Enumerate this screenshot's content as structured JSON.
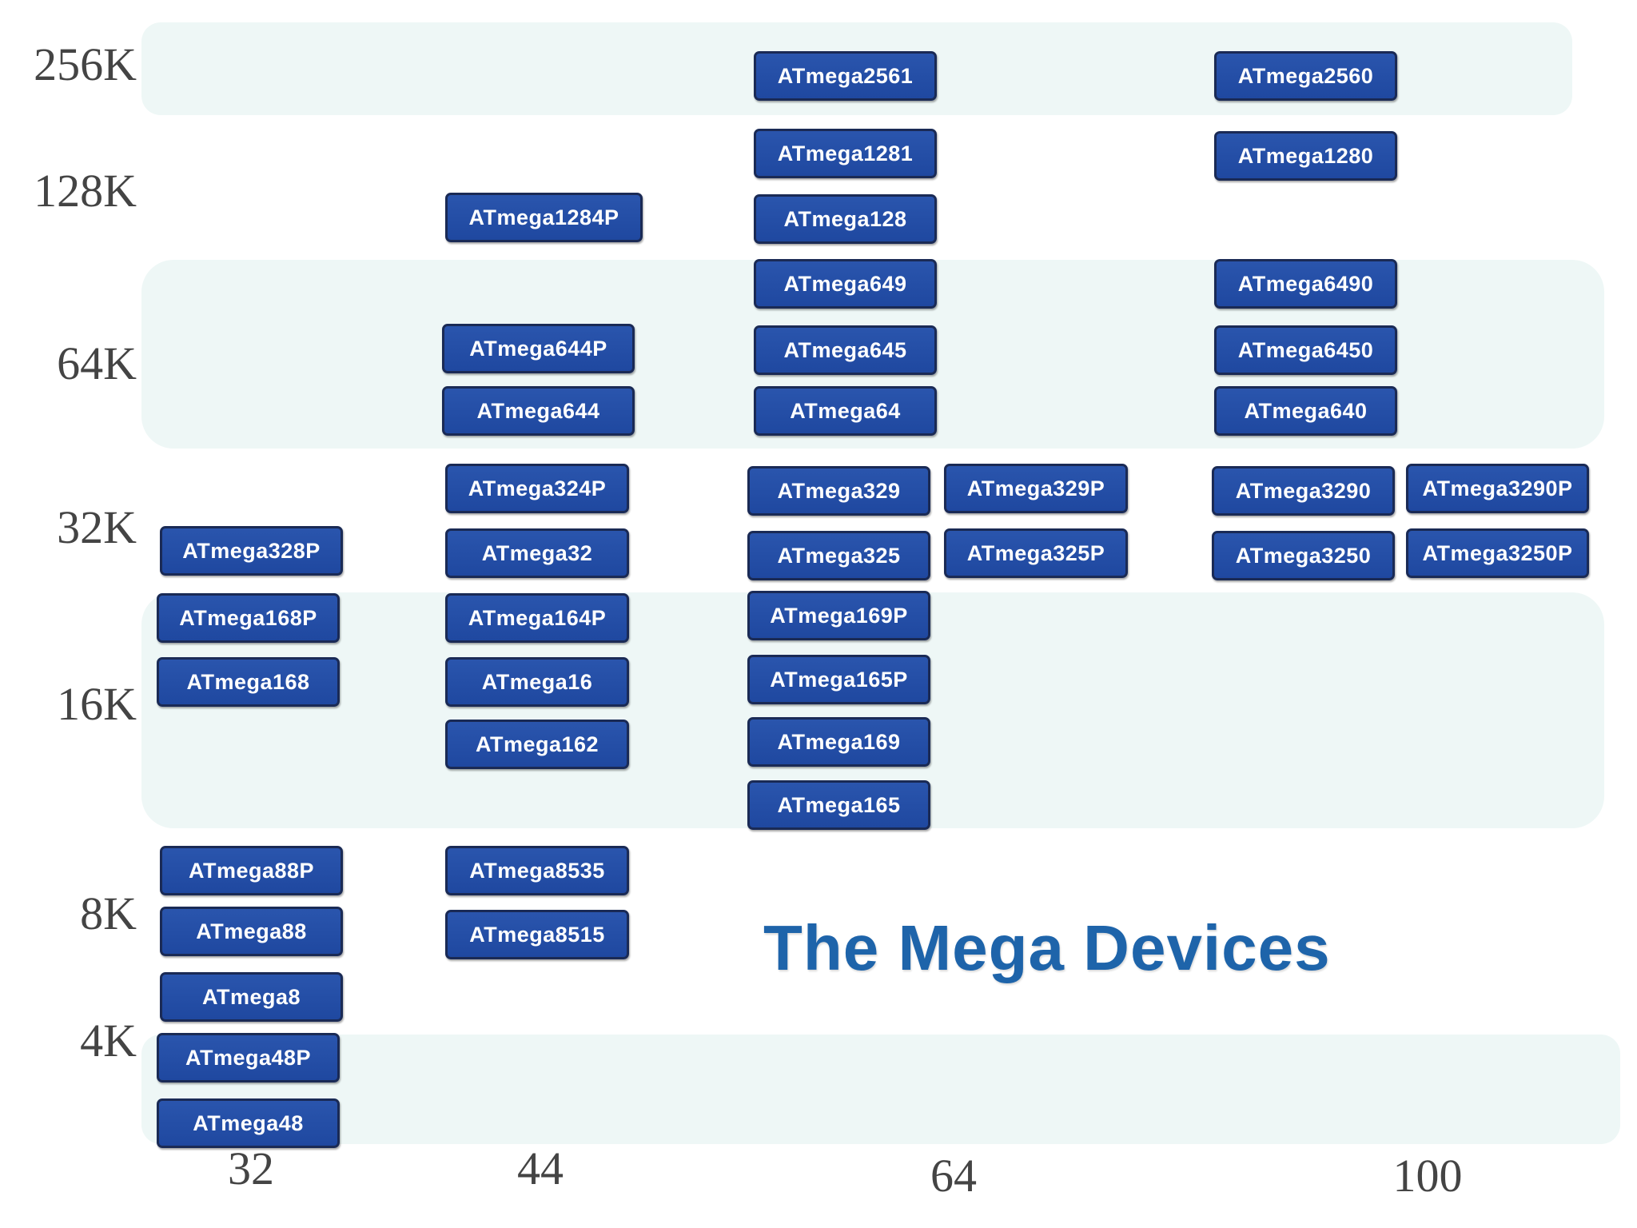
{
  "title": "The Mega Devices",
  "flash_labels": [
    "256K",
    "128K",
    "64K",
    "32K",
    "16K",
    "8K",
    "4K"
  ],
  "pin_labels": [
    "32",
    "44",
    "64",
    "100"
  ],
  "devices": {
    "atmega2561": "ATmega2561",
    "atmega2560": "ATmega2560",
    "atmega1281": "ATmega1281",
    "atmega1280": "ATmega1280",
    "atmega1284p": "ATmega1284P",
    "atmega128": "ATmega128",
    "atmega649": "ATmega649",
    "atmega6490": "ATmega6490",
    "atmega644p": "ATmega644P",
    "atmega645": "ATmega645",
    "atmega6450": "ATmega6450",
    "atmega644": "ATmega644",
    "atmega64": "ATmega64",
    "atmega640": "ATmega640",
    "atmega324p": "ATmega324P",
    "atmega329": "ATmega329",
    "atmega329p": "ATmega329P",
    "atmega3290": "ATmega3290",
    "atmega3290p": "ATmega3290P",
    "atmega328p": "ATmega328P",
    "atmega32": "ATmega32",
    "atmega325": "ATmega325",
    "atmega325p": "ATmega325P",
    "atmega3250": "ATmega3250",
    "atmega3250p": "ATmega3250P",
    "atmega168p": "ATmega168P",
    "atmega164p": "ATmega164P",
    "atmega169p": "ATmega169P",
    "atmega168": "ATmega168",
    "atmega16": "ATmega16",
    "atmega165p": "ATmega165P",
    "atmega162": "ATmega162",
    "atmega169": "ATmega169",
    "atmega165": "ATmega165",
    "atmega88p": "ATmega88P",
    "atmega8535": "ATmega8535",
    "atmega88": "ATmega88",
    "atmega8515": "ATmega8515",
    "atmega8": "ATmega8",
    "atmega48p": "ATmega48P",
    "atmega48": "ATmega48"
  }
}
